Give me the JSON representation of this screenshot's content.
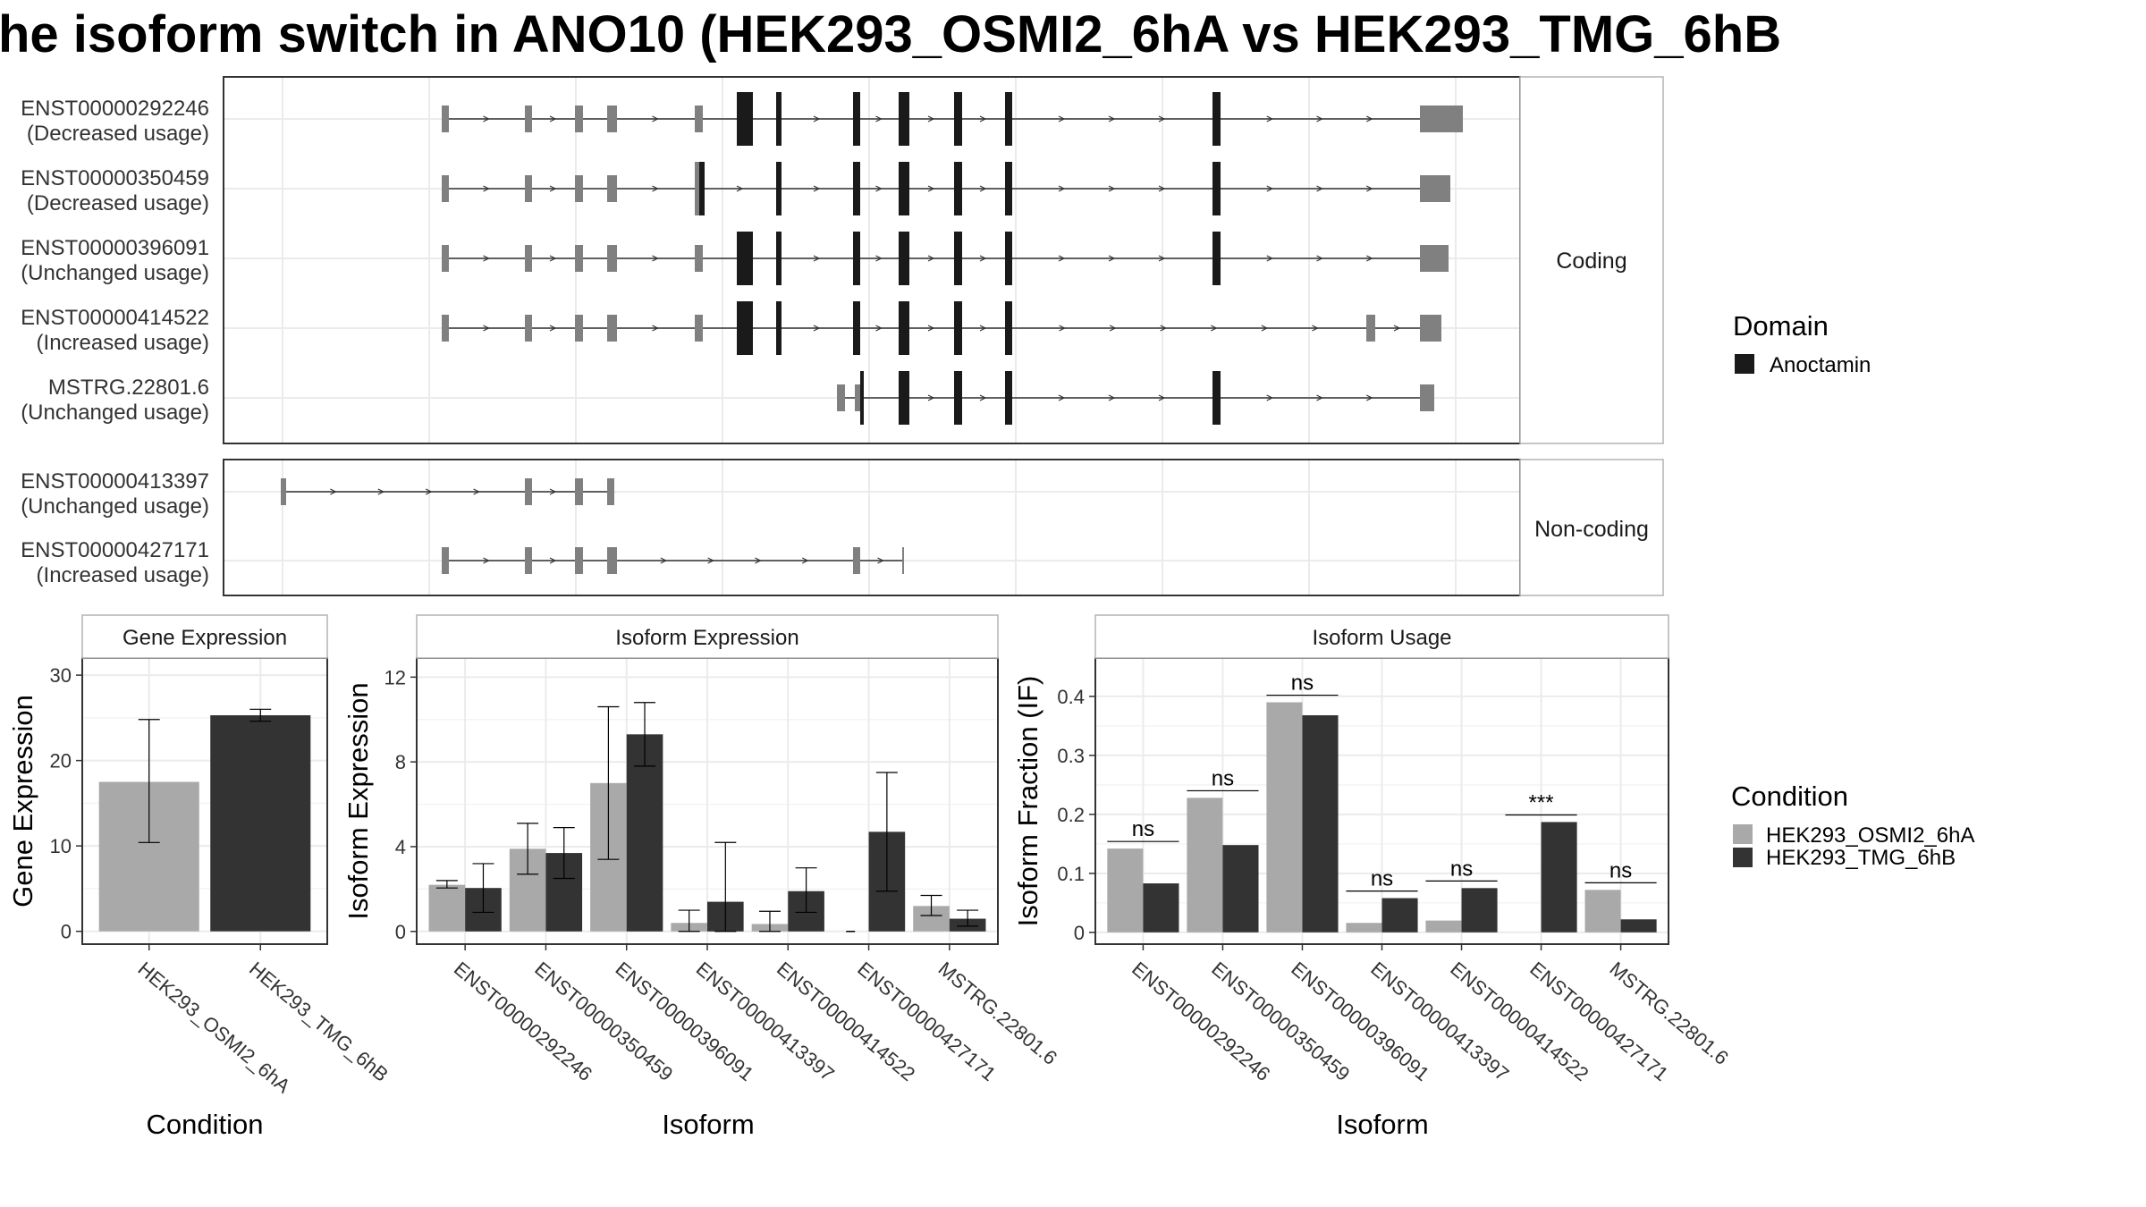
{
  "title": "he isoform switch in ANO10 (HEK293_OSMI2_6hA vs HEK293_TMG_6hB",
  "colors": {
    "exon": "#808080",
    "domain": "#1a1a1a",
    "cond_a": "#a9a9a9",
    "cond_b": "#333333",
    "grid": "#ebebeb",
    "panel_border": "#333333",
    "strip_border": "#b3b3b3"
  },
  "transcript_panels": {
    "coding_label": "Coding",
    "noncoding_label": "Non-coding",
    "coding": [
      {
        "id": "ENST00000292246",
        "status": "(Decreased usage)"
      },
      {
        "id": "ENST00000350459",
        "status": "(Decreased usage)"
      },
      {
        "id": "ENST00000396091",
        "status": "(Unchanged usage)"
      },
      {
        "id": "ENST00000414522",
        "status": "(Increased usage)"
      },
      {
        "id": "MSTRG.22801.6",
        "status": "(Unchanged usage)"
      }
    ],
    "noncoding": [
      {
        "id": "ENST00000413397",
        "status": "(Unchanged usage)"
      },
      {
        "id": "ENST00000427171",
        "status": "(Increased usage)"
      }
    ]
  },
  "legend_domain": {
    "title": "Domain",
    "items": [
      "Anoctamin"
    ]
  },
  "legend_condition": {
    "title": "Condition",
    "items": [
      "HEK293_OSMI2_6hA",
      "HEK293_TMG_6hB"
    ]
  },
  "chart_data": [
    {
      "type": "bar",
      "title": "Gene Expression",
      "xlabel": "Condition",
      "ylabel": "Gene Expression",
      "categories": [
        "HEK293_OSMI2_6hA",
        "HEK293_TMG_6hB"
      ],
      "values": [
        17.5,
        25.3
      ],
      "errors": [
        [
          10.4,
          24.8
        ],
        [
          24.6,
          26.0
        ]
      ],
      "ylim": [
        -1.5,
        32
      ],
      "yticks": [
        0,
        10,
        20,
        30
      ]
    },
    {
      "type": "bar",
      "title": "Isoform Expression",
      "xlabel": "Isoform",
      "ylabel": "Isoform Expression",
      "categories": [
        "ENST00000292246",
        "ENST00000350459",
        "ENST00000396091",
        "ENST00000413397",
        "ENST00000414522",
        "ENST00000427171",
        "MSTRG.22801.6"
      ],
      "series": [
        {
          "name": "HEK293_OSMI2_6hA",
          "values": [
            2.2,
            3.9,
            7.0,
            0.4,
            0.35,
            0.0,
            1.2
          ],
          "errors": [
            [
              2.05,
              2.4
            ],
            [
              2.7,
              5.1
            ],
            [
              3.4,
              10.6
            ],
            [
              0.0,
              1.0
            ],
            [
              0.0,
              0.95
            ],
            [
              0.0,
              0.0
            ],
            [
              0.75,
              1.7
            ]
          ]
        },
        {
          "name": "HEK293_TMG_6hB",
          "values": [
            2.05,
            3.7,
            9.3,
            1.4,
            1.9,
            4.7,
            0.6
          ],
          "errors": [
            [
              0.9,
              3.2
            ],
            [
              2.5,
              4.9
            ],
            [
              7.8,
              10.8
            ],
            [
              0.0,
              4.2
            ],
            [
              0.9,
              3.0
            ],
            [
              1.9,
              7.5
            ],
            [
              0.25,
              1.0
            ]
          ]
        }
      ],
      "ylim": [
        -0.6,
        12.9
      ],
      "yticks": [
        0,
        4,
        8,
        12
      ]
    },
    {
      "type": "bar",
      "title": "Isoform Usage",
      "xlabel": "Isoform",
      "ylabel": "Isoform Fraction (IF)",
      "categories": [
        "ENST00000292246",
        "ENST00000350459",
        "ENST00000396091",
        "ENST00000413397",
        "ENST00000414522",
        "ENST00000427171",
        "MSTRG.22801.6"
      ],
      "series": [
        {
          "name": "HEK293_OSMI2_6hA",
          "values": [
            0.142,
            0.228,
            0.39,
            0.016,
            0.02,
            0.0,
            0.072
          ]
        },
        {
          "name": "HEK293_TMG_6hB",
          "values": [
            0.083,
            0.148,
            0.368,
            0.058,
            0.075,
            0.187,
            0.022
          ]
        }
      ],
      "significance": [
        "ns",
        "ns",
        "ns",
        "ns",
        "ns",
        "***",
        "ns"
      ],
      "ylim": [
        -0.02,
        0.465
      ],
      "yticks": [
        0.0,
        0.1,
        0.2,
        0.3,
        0.4
      ]
    }
  ]
}
